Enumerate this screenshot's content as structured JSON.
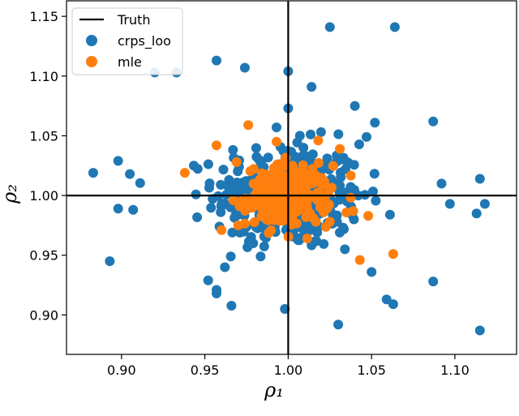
{
  "chart_data": {
    "type": "scatter",
    "xlabel": "ρ₁",
    "ylabel": "ρ₂",
    "xlim": [
      0.867,
      1.137
    ],
    "ylim": [
      0.867,
      1.163
    ],
    "xticks": [
      "0.90",
      "0.95",
      "1.00",
      "1.05",
      "1.10"
    ],
    "yticks": [
      "0.90",
      "0.95",
      "1.00",
      "1.05",
      "1.10",
      "1.15"
    ],
    "grid": false,
    "legend_position": "top-left",
    "truth": {
      "name": "Truth",
      "x": 1.0,
      "y": 1.0,
      "color": "#000000"
    },
    "series": [
      {
        "name": "crps_loo",
        "color": "#1f77b4",
        "points": [
          [
            1.025,
            1.141
          ],
          [
            1.064,
            1.141
          ],
          [
            0.957,
            1.113
          ],
          [
            0.92,
            1.103
          ],
          [
            0.933,
            1.103
          ],
          [
            1.0,
            1.104
          ],
          [
            0.974,
            1.107
          ],
          [
            1.087,
            1.062
          ],
          [
            0.883,
            1.019
          ],
          [
            0.898,
            1.029
          ],
          [
            0.905,
            1.018
          ],
          [
            0.893,
            0.945
          ],
          [
            0.898,
            0.989
          ],
          [
            0.907,
            0.988
          ],
          [
            0.957,
            0.921
          ],
          [
            0.952,
            0.929
          ],
          [
            0.998,
            0.905
          ],
          [
            1.03,
            0.892
          ],
          [
            1.115,
            0.887
          ],
          [
            1.115,
            1.014
          ],
          [
            1.118,
            0.993
          ],
          [
            1.097,
            0.993
          ],
          [
            1.092,
            1.01
          ],
          [
            1.113,
            0.985
          ],
          [
            1.059,
            0.913
          ],
          [
            1.087,
            0.928
          ],
          [
            1.063,
            0.909
          ],
          [
            1.05,
            0.936
          ],
          [
            0.957,
            0.918
          ],
          [
            1.052,
            1.061
          ],
          [
            1.047,
            1.049
          ],
          [
            1.0,
            1.073
          ],
          [
            1.007,
            1.05
          ],
          [
            0.993,
            1.057
          ],
          [
            1.014,
            1.091
          ],
          [
            1.04,
            1.075
          ],
          [
            1.042,
            1.0
          ],
          [
            0.979,
            0.96
          ],
          [
            0.962,
            0.94
          ],
          [
            1.034,
            0.955
          ]
        ]
      },
      {
        "name": "mle",
        "color": "#ff7f0e",
        "points": [
          [
            1.063,
            0.951
          ],
          [
            1.043,
            0.946
          ],
          [
            0.938,
            1.019
          ],
          [
            0.957,
            1.042
          ],
          [
            0.976,
            1.059
          ],
          [
            0.993,
            1.045
          ],
          [
            1.018,
            1.046
          ],
          [
            1.031,
            1.039
          ],
          [
            0.96,
            0.971
          ],
          [
            0.97,
            0.975
          ],
          [
            1.025,
            0.978
          ],
          [
            1.048,
            0.983
          ],
          [
            1.039,
            0.987
          ],
          [
            0.967,
            0.996
          ],
          [
            0.969,
            1.028
          ]
        ]
      }
    ]
  }
}
